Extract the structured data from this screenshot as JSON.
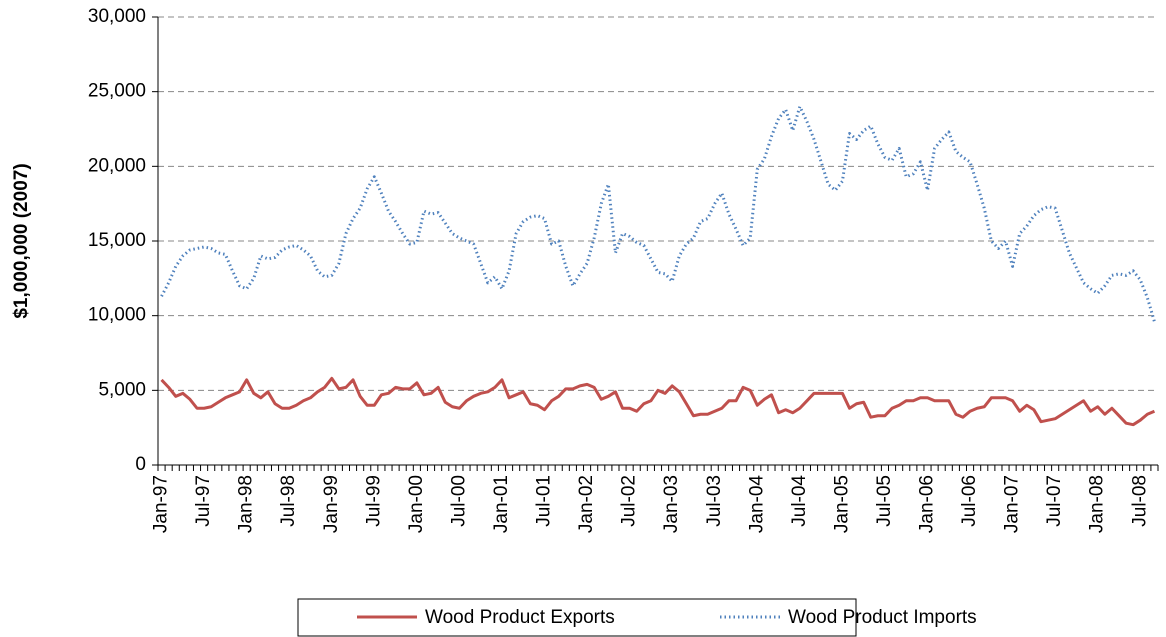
{
  "chart_data": {
    "type": "line",
    "y_label": "$1,000,000 (2007)",
    "categories": [
      "Jan-97",
      null,
      null,
      null,
      null,
      null,
      "Jul-97",
      null,
      null,
      null,
      null,
      null,
      "Jan-98",
      null,
      null,
      null,
      null,
      null,
      "Jul-98",
      null,
      null,
      null,
      null,
      null,
      "Jan-99",
      null,
      null,
      null,
      null,
      null,
      "Jul-99",
      null,
      null,
      null,
      null,
      null,
      "Jan-00",
      null,
      null,
      null,
      null,
      null,
      "Jul-00",
      null,
      null,
      null,
      null,
      null,
      "Jan-01",
      null,
      null,
      null,
      null,
      null,
      "Jul-01",
      null,
      null,
      null,
      null,
      null,
      "Jan-02",
      null,
      null,
      null,
      null,
      null,
      "Jul-02",
      null,
      null,
      null,
      null,
      null,
      "Jan-03",
      null,
      null,
      null,
      null,
      null,
      "Jul-03",
      null,
      null,
      null,
      null,
      null,
      "Jan-04",
      null,
      null,
      null,
      null,
      null,
      "Jul-04",
      null,
      null,
      null,
      null,
      null,
      "Jan-05",
      null,
      null,
      null,
      null,
      null,
      "Jul-05",
      null,
      null,
      null,
      null,
      null,
      "Jan-06",
      null,
      null,
      null,
      null,
      null,
      "Jul-06",
      null,
      null,
      null,
      null,
      null,
      "Jan-07",
      null,
      null,
      null,
      null,
      null,
      "Jul-07",
      null,
      null,
      null,
      null,
      null,
      "Jan-08",
      null,
      null,
      null,
      null,
      null,
      "Jul-08",
      null,
      null
    ],
    "series": [
      {
        "name": "Wood Product Exports",
        "color": "#c0504d",
        "dash": "solid",
        "values": [
          5700,
          5200,
          4600,
          4800,
          4400,
          3800,
          3800,
          3900,
          4200,
          4500,
          4700,
          4900,
          5700,
          4800,
          4500,
          4900,
          4100,
          3800,
          3800,
          4000,
          4300,
          4500,
          4900,
          5200,
          5800,
          5100,
          5200,
          5700,
          4600,
          4000,
          4000,
          4700,
          4800,
          5200,
          5100,
          5100,
          5500,
          4700,
          4800,
          5200,
          4200,
          3900,
          3800,
          4300,
          4600,
          4800,
          4900,
          5200,
          5700,
          4500,
          4700,
          4900,
          4100,
          4000,
          3700,
          4300,
          4600,
          5100,
          5100,
          5300,
          5400,
          5200,
          4400,
          4600,
          4900,
          3800,
          3800,
          3600,
          4100,
          4300,
          5000,
          4800,
          5300,
          4900,
          4100,
          3300,
          3400,
          3400,
          3600,
          3800,
          4300,
          4300,
          5200,
          5000,
          4000,
          4400,
          4700,
          3500,
          3700,
          3500,
          3800,
          4300,
          4800,
          4800,
          4800,
          4800,
          4800,
          3800,
          4100,
          4200,
          3200,
          3300,
          3300,
          3800,
          4000,
          4300,
          4300,
          4500,
          4500,
          4300,
          4300,
          4300,
          3400,
          3200,
          3600,
          3800,
          3900,
          4500,
          4500,
          4500,
          4300,
          3600,
          4000,
          3700,
          2900,
          3000,
          3100,
          3400,
          3700,
          4000,
          4300,
          3600,
          3900,
          3400,
          3800,
          3300,
          2800,
          2700,
          3000,
          3400,
          3600
        ]
      },
      {
        "name": "Wood Product Imports",
        "color": "#4f81bd",
        "dash": "dotted",
        "values": [
          11300,
          12200,
          13300,
          14000,
          14400,
          14500,
          14600,
          14500,
          14200,
          14100,
          13000,
          12000,
          11800,
          12500,
          14000,
          13800,
          13900,
          14400,
          14600,
          14700,
          14400,
          14000,
          13000,
          12600,
          12700,
          13500,
          15500,
          16500,
          17200,
          18500,
          19300,
          18200,
          17000,
          16300,
          15500,
          14800,
          14900,
          17000,
          16800,
          16900,
          16200,
          15500,
          15200,
          15000,
          14800,
          13500,
          12200,
          12600,
          11800,
          13000,
          15500,
          16300,
          16600,
          16700,
          16500,
          14800,
          15000,
          13300,
          12000,
          12800,
          13500,
          15200,
          17500,
          18800,
          14200,
          15500,
          15300,
          14900,
          14700,
          13800,
          12900,
          12800,
          12300,
          14000,
          14800,
          15200,
          16300,
          16500,
          17500,
          18200,
          16800,
          15800,
          14700,
          15200,
          19800,
          20500,
          22000,
          23200,
          23800,
          22400,
          24000,
          23000,
          21800,
          20300,
          18800,
          18400,
          19000,
          22200,
          21800,
          22400,
          22700,
          21500,
          20600,
          20400,
          21200,
          19300,
          19500,
          20300,
          18400,
          21200,
          21800,
          22300,
          21000,
          20600,
          20300,
          18800,
          17200,
          15000,
          14500,
          15000,
          13300,
          15500,
          16000,
          16700,
          17100,
          17300,
          17200,
          15700,
          14200,
          13200,
          12200,
          11800,
          11500,
          12000,
          12700,
          12800,
          12700,
          13000,
          12400,
          11200,
          9600
        ]
      }
    ],
    "ylim": [
      0,
      30000
    ],
    "yticks": [
      0,
      {
        "value": 5000,
        "label": "5,000"
      },
      {
        "value": 10000,
        "label": "10,000"
      },
      {
        "value": 15000,
        "label": "15,000"
      },
      {
        "value": 20000,
        "label": "20,000"
      },
      {
        "value": 25000,
        "label": "25,000"
      },
      {
        "value": 30000,
        "label": "30,000"
      }
    ],
    "grid": true,
    "legend": "bottom"
  }
}
